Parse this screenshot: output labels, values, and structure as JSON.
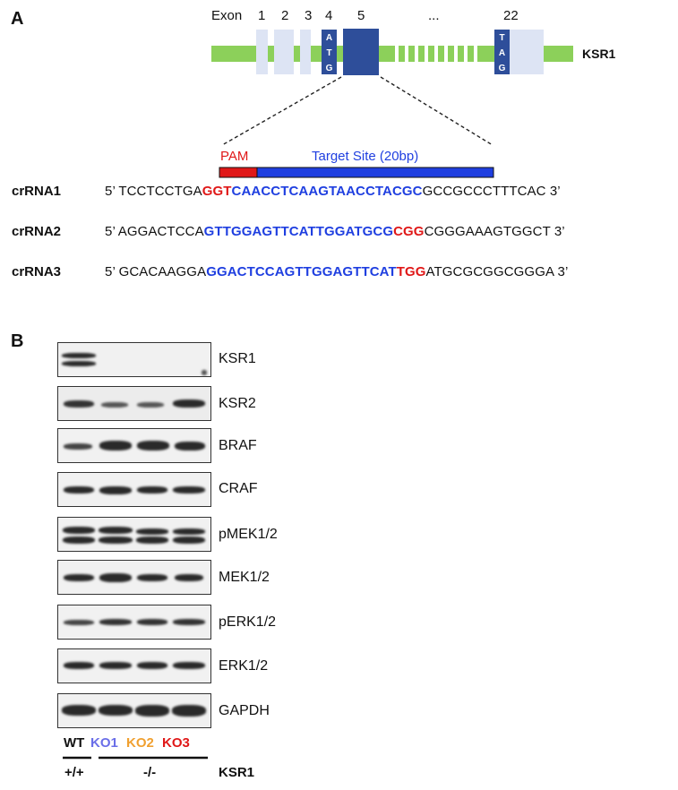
{
  "panel_a": {
    "letter": "A",
    "exon_word": "Exon",
    "exon_numbers": [
      "1",
      "2",
      "3",
      "4",
      "5",
      "...",
      "22"
    ],
    "start_codon": [
      "A",
      "T",
      "G"
    ],
    "stop_codon": [
      "T",
      "A",
      "G"
    ],
    "gene": "KSR1",
    "pam_label": "PAM",
    "target_label": "Target Site (20bp)",
    "colors": {
      "utr": "#dde4f4",
      "exon": "#2e4e9a",
      "intron": "#8cd05a",
      "pam": "#e01818",
      "target": "#1f3fe0"
    },
    "crrnas": [
      {
        "label": "crRNA1",
        "segments": [
          {
            "text": "5’ TCCTCCTGA",
            "style": "n"
          },
          {
            "text": "GGT",
            "style": "r"
          },
          {
            "text": "CAACCTCAAGTAACCTACGC",
            "style": "b"
          },
          {
            "text": "GCCGCCCTTTCAC 3’",
            "style": "n"
          }
        ]
      },
      {
        "label": "crRNA2",
        "segments": [
          {
            "text": "5’ AGGACTCCA",
            "style": "n"
          },
          {
            "text": "GTTGGAGTTCATTGGATGCG",
            "style": "b"
          },
          {
            "text": "CGG",
            "style": "r"
          },
          {
            "text": "CGGGAAAGTGGCT 3’",
            "style": "n"
          }
        ]
      },
      {
        "label": "crRNA3",
        "segments": [
          {
            "text": "5’ GCACAAGGA",
            "style": "n"
          },
          {
            "text": "GGACTCCAGTTGGAGTTCAT",
            "style": "b"
          },
          {
            "text": "TGG",
            "style": "r"
          },
          {
            "text": "ATGCGCGGCGGGA 3’",
            "style": "n"
          }
        ]
      }
    ]
  },
  "panel_b": {
    "letter": "B",
    "proteins": [
      "KSR1",
      "KSR2",
      "BRAF",
      "CRAF",
      "pMEK1/2",
      "MEK1/2",
      "pERK1/2",
      "ERK1/2",
      "GAPDH"
    ],
    "lanes": [
      {
        "label": "WT",
        "color": "#111111"
      },
      {
        "label": "KO1",
        "color": "#6a6ee8"
      },
      {
        "label": "KO2",
        "color": "#f0a030"
      },
      {
        "label": "KO3",
        "color": "#e01818"
      }
    ],
    "genotype_wt": "+/+",
    "genotype_ko": "-/-",
    "genotype_gene": "KSR1"
  }
}
